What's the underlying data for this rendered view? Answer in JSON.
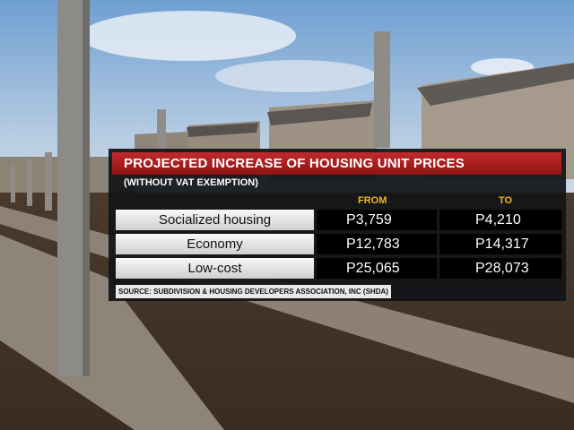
{
  "chart_data": {
    "type": "table",
    "title": "PROJECTED INCREASE OF HOUSING UNIT PRICES",
    "subtitle": "(WITHOUT VAT EXEMPTION)",
    "columns": [
      "FROM",
      "TO"
    ],
    "rows": [
      {
        "category": "Socialized housing",
        "from": "P3,759",
        "to": "P4,210"
      },
      {
        "category": "Economy",
        "from": "P12,783",
        "to": "P14,317"
      },
      {
        "category": "Low-cost",
        "from": "P25,065",
        "to": "P28,073"
      }
    ],
    "source": "SOURCE: SUBDIVISION & HOUSING DEVELOPERS ASSOCIATION, INC (SHDA)"
  },
  "colors": {
    "title_bar": "#b01e22",
    "column_header": "#f2b51d",
    "panel": "#121418"
  }
}
